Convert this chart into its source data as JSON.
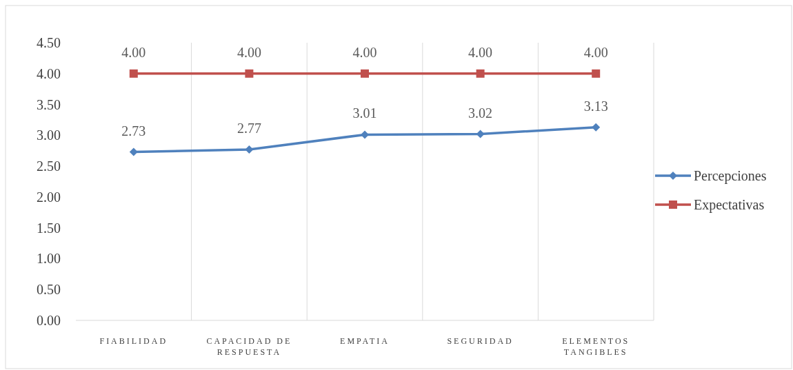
{
  "chart_data": {
    "type": "line",
    "categories": [
      "FIABILIDAD",
      "CAPACIDAD DE RESPUESTA",
      "EMPATIA",
      "SEGURIDAD",
      "ELEMENTOS TANGIBLES"
    ],
    "series": [
      {
        "name": "Percepciones",
        "color": "#4f81bd",
        "marker": "diamond",
        "values": [
          2.73,
          2.77,
          3.01,
          3.02,
          3.13
        ],
        "value_labels": [
          "2.73",
          "2.77",
          "3.01",
          "3.02",
          "3.13"
        ]
      },
      {
        "name": "Expectativas",
        "color": "#c0504d",
        "marker": "square",
        "values": [
          4.0,
          4.0,
          4.0,
          4.0,
          4.0
        ],
        "value_labels": [
          "4.00",
          "4.00",
          "4.00",
          "4.00",
          "4.00"
        ]
      }
    ],
    "ylim": [
      0,
      4.5
    ],
    "yticks": [
      {
        "value": 0,
        "label": "0.00"
      },
      {
        "value": 0.5,
        "label": "0.50"
      },
      {
        "value": 1,
        "label": "1.00"
      },
      {
        "value": 1.5,
        "label": "1.50"
      },
      {
        "value": 2,
        "label": "2.00"
      },
      {
        "value": 2.5,
        "label": "2.50"
      },
      {
        "value": 3,
        "label": "3.00"
      },
      {
        "value": 3.5,
        "label": "3.50"
      },
      {
        "value": 4,
        "label": "4.00"
      },
      {
        "value": 4.5,
        "label": "4.50"
      }
    ],
    "grid": "x",
    "legend": "right",
    "line_style": "solid"
  }
}
